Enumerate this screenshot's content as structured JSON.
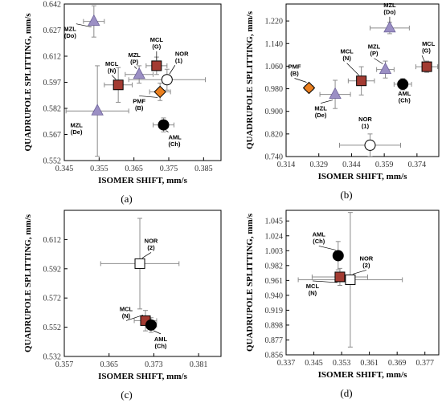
{
  "chart_data": [
    {
      "panel": "(a)",
      "type": "scatter",
      "xlabel": "ISOMER SHIFT, mm/s",
      "ylabel": "QUADRUPOLE SPLITTING, mm/s",
      "xlim": [
        0.345,
        0.39
      ],
      "ylim": [
        0.552,
        0.642
      ],
      "xticks": [
        "0.345",
        "0.355",
        "0.365",
        "0.375",
        "0.385"
      ],
      "yticks": [
        "0.552",
        "0.567",
        "0.582",
        "0.597",
        "0.612",
        "0.627",
        "0.642"
      ],
      "points": [
        {
          "label": [
            "MZL",
            "(Do)"
          ],
          "marker": "triangle",
          "x": 0.3535,
          "y": 0.632,
          "xerr": 0.003,
          "yerr": 0.009
        },
        {
          "label": [
            "MZL",
            "(P)"
          ],
          "marker": "triangle",
          "x": 0.3665,
          "y": 0.6015,
          "xerr": 0.004,
          "yerr": 0.005
        },
        {
          "label": [
            "MCL",
            "(G)"
          ],
          "marker": "square",
          "x": 0.3715,
          "y": 0.6065,
          "xerr": 0.003,
          "yerr": 0.005
        },
        {
          "label": [
            "NOR",
            "(1)"
          ],
          "marker": "open-circle",
          "x": 0.3745,
          "y": 0.5985,
          "xerr": 0.011,
          "yerr": 0.006
        },
        {
          "label": [
            "MCL",
            "(N)"
          ],
          "marker": "square",
          "x": 0.3605,
          "y": 0.5955,
          "xerr": 0.004,
          "yerr": 0.01
        },
        {
          "label": [
            "PMF",
            "(B)"
          ],
          "marker": "diamond",
          "x": 0.3725,
          "y": 0.5915,
          "xerr": 0.003,
          "yerr": 0.005
        },
        {
          "label": [
            "MZL",
            "(De)"
          ],
          "marker": "triangle",
          "x": 0.3545,
          "y": 0.5805,
          "xerr": 0.009,
          "yerr": 0.026
        },
        {
          "label": [
            "AML",
            "(Ch)"
          ],
          "marker": "filled-circle",
          "x": 0.3735,
          "y": 0.5725,
          "xerr": 0.003,
          "yerr": 0.004
        }
      ]
    },
    {
      "panel": "(b)",
      "type": "scatter",
      "xlabel": "ISOMER SHIFT, mm/s",
      "ylabel": "QUADRUPOLE SPLITTING, mm/s",
      "xlim": [
        0.314,
        0.384
      ],
      "ylim": [
        0.74,
        1.28
      ],
      "xticks": [
        "0.314",
        "0.329",
        "0.344",
        "0.359",
        "0.374"
      ],
      "yticks": [
        "0.740",
        "0.820",
        "0.900",
        "0.980",
        "1.060",
        "1.140",
        "1.220"
      ],
      "points": [
        {
          "label": [
            "MZL",
            "(Do)"
          ],
          "marker": "triangle",
          "x": 0.3615,
          "y": 1.195,
          "xerr": 0.009,
          "yerr": 0.02
        },
        {
          "label": [
            "MCL",
            "(G)"
          ],
          "marker": "square",
          "x": 0.3785,
          "y": 1.058,
          "xerr": 0.005,
          "yerr": 0.02
        },
        {
          "label": [
            "MZL",
            "(P)"
          ],
          "marker": "triangle",
          "x": 0.3595,
          "y": 1.048,
          "xerr": 0.004,
          "yerr": 0.03
        },
        {
          "label": [
            "MCL",
            "(N)"
          ],
          "marker": "square",
          "x": 0.3485,
          "y": 1.008,
          "xerr": 0.006,
          "yerr": 0.05
        },
        {
          "label": [
            "AML",
            "(Ch)"
          ],
          "marker": "filled-circle",
          "x": 0.3675,
          "y": 0.996,
          "xerr": 0.004,
          "yerr": 0.02
        },
        {
          "label": [
            "PMF",
            "(B)"
          ],
          "marker": "diamond",
          "x": 0.3245,
          "y": 0.983,
          "xerr": 0.002,
          "yerr": 0.01
        },
        {
          "label": [
            "MZL",
            "(De)"
          ],
          "marker": "triangle",
          "x": 0.3365,
          "y": 0.96,
          "xerr": 0.007,
          "yerr": 0.05
        },
        {
          "label": [
            "NOR",
            "(1)"
          ],
          "marker": "open-circle",
          "x": 0.3525,
          "y": 0.78,
          "xerr": 0.014,
          "yerr": 0.04
        }
      ]
    },
    {
      "panel": "(c)",
      "type": "scatter",
      "xlabel": "ISOMER SHIFT, mm/s",
      "ylabel": "QUADRUPOLE SPLITTING, mm/s",
      "xlim": [
        0.357,
        0.385
      ],
      "ylim": [
        0.532,
        0.632
      ],
      "xticks": [
        "0.357",
        "0.365",
        "0.373",
        "0.381"
      ],
      "yticks": [
        "0.532",
        "0.552",
        "0.572",
        "0.592",
        "0.612"
      ],
      "points": [
        {
          "label": [
            "NOR",
            "(2)"
          ],
          "marker": "open-square",
          "x": 0.3705,
          "y": 0.5955,
          "xerr": 0.007,
          "yerr": 0.031
        },
        {
          "label": [
            "MCL",
            "(N)"
          ],
          "marker": "square",
          "x": 0.3715,
          "y": 0.5565,
          "xerr": 0.002,
          "yerr": 0.007
        },
        {
          "label": [
            "AML",
            "(Ch)"
          ],
          "marker": "filled-circle",
          "x": 0.3725,
          "y": 0.5535,
          "xerr": 0.001,
          "yerr": 0.005
        }
      ]
    },
    {
      "panel": "(d)",
      "type": "scatter",
      "xlabel": "ISOMER SHIFT, mm/s",
      "ylabel": "QUADRUPOLE SPLITTING, mm/s",
      "xlim": [
        0.337,
        0.381
      ],
      "ylim": [
        0.856,
        1.06
      ],
      "xticks": [
        "0.337",
        "0.345",
        "0.353",
        "0.361",
        "0.369",
        "0.377"
      ],
      "yticks": [
        "0.856",
        "0.877",
        "0.898",
        "0.919",
        "0.940",
        "0.961",
        "0.982",
        "1.003",
        "1.024",
        "1.045"
      ],
      "points": [
        {
          "label": [
            "AML",
            "(Ch)"
          ],
          "marker": "filled-circle",
          "x": 0.352,
          "y": 0.996,
          "xerr": 0.001,
          "yerr": 0.02
        },
        {
          "label": [
            "MCL",
            "(N)"
          ],
          "marker": "square",
          "x": 0.3525,
          "y": 0.966,
          "xerr": 0.008,
          "yerr": 0.012
        },
        {
          "label": [
            "NOR",
            "(2)"
          ],
          "marker": "open-square",
          "x": 0.3555,
          "y": 0.962,
          "xerr": 0.015,
          "yerr": 0.095
        }
      ]
    }
  ],
  "colors": {
    "square": "#a33b32",
    "triangle": "#9b8fc4",
    "diamond": "#ea7f1f",
    "filled-circle": "#000000",
    "open": "#ffffff",
    "errorbar": "#8c8c8c",
    "axes": "#000000"
  },
  "marker_names": {
    "square": "square-marker",
    "triangle": "triangle-marker",
    "diamond": "diamond-marker",
    "filled-circle": "filled-circle-marker",
    "open-circle": "open-circle-marker",
    "open-square": "open-square-marker"
  }
}
